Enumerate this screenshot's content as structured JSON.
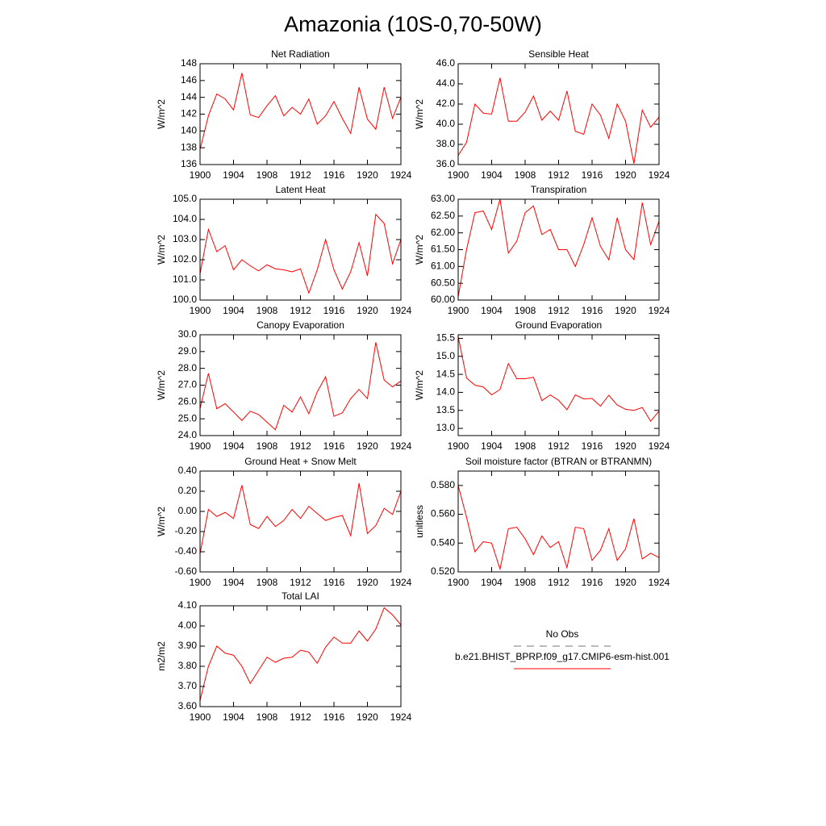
{
  "title": "Amazonia (10S-0,70-50W)",
  "legend": [
    {
      "name": "No Obs",
      "color": "#777777",
      "dash": true
    },
    {
      "name": "b.e21.BHIST_BPRP.f09_g17.CMIP6-esm-hist.001",
      "color": "#ff0000",
      "dash": false
    }
  ],
  "chart_data": [
    {
      "type": "line",
      "title": "Net Radiation",
      "ylabel": "W/m^2",
      "color": "#ff0000",
      "x": [
        1900,
        1901,
        1902,
        1903,
        1904,
        1905,
        1906,
        1907,
        1908,
        1909,
        1910,
        1911,
        1912,
        1913,
        1914,
        1915,
        1916,
        1917,
        1918,
        1919,
        1920,
        1921,
        1922,
        1923,
        1924
      ],
      "values": [
        137.8,
        141.8,
        144.4,
        143.8,
        142.5,
        146.9,
        141.9,
        141.6,
        143.0,
        144.2,
        141.8,
        142.8,
        142.0,
        143.8,
        140.8,
        141.8,
        143.5,
        141.5,
        139.7,
        145.2,
        141.4,
        140.2,
        145.2,
        141.5,
        144.0
      ],
      "xlim": [
        1900,
        1924
      ],
      "xticks": [
        1900,
        1904,
        1908,
        1912,
        1916,
        1920,
        1924
      ],
      "ylim": [
        136,
        148
      ],
      "yticks": [
        136,
        138,
        140,
        142,
        144,
        146,
        148
      ]
    },
    {
      "type": "line",
      "title": "Sensible Heat",
      "ylabel": "W/m^2",
      "color": "#ff0000",
      "x": [
        1900,
        1901,
        1902,
        1903,
        1904,
        1905,
        1906,
        1907,
        1908,
        1909,
        1910,
        1911,
        1912,
        1913,
        1914,
        1915,
        1916,
        1917,
        1918,
        1919,
        1920,
        1921,
        1922,
        1923,
        1924
      ],
      "values": [
        36.9,
        38.2,
        42.0,
        41.1,
        41.0,
        44.6,
        40.3,
        40.3,
        41.2,
        42.8,
        40.4,
        41.3,
        40.4,
        43.3,
        39.3,
        39.0,
        42.0,
        40.9,
        38.6,
        42.0,
        40.3,
        36.1,
        41.4,
        39.7,
        40.7
      ],
      "xlim": [
        1900,
        1924
      ],
      "xticks": [
        1900,
        1904,
        1908,
        1912,
        1916,
        1920,
        1924
      ],
      "ylim": [
        36,
        46
      ],
      "yticks": [
        {
          "value": 36,
          "label": "36.0"
        },
        {
          "value": 38,
          "label": "38.0"
        },
        {
          "value": 40,
          "label": "40.0"
        },
        {
          "value": 42,
          "label": "42.0"
        },
        {
          "value": 44,
          "label": "44.0"
        },
        {
          "value": 46,
          "label": "46.0"
        }
      ]
    },
    {
      "type": "line",
      "title": "Latent Heat",
      "ylabel": "W/m^2",
      "color": "#ff0000",
      "x": [
        1900,
        1901,
        1902,
        1903,
        1904,
        1905,
        1906,
        1907,
        1908,
        1909,
        1910,
        1911,
        1912,
        1913,
        1914,
        1915,
        1916,
        1917,
        1918,
        1919,
        1920,
        1921,
        1922,
        1923,
        1924
      ],
      "values": [
        101.3,
        103.5,
        102.4,
        102.7,
        101.5,
        102.0,
        101.7,
        101.45,
        101.75,
        101.55,
        101.5,
        101.4,
        101.55,
        100.35,
        101.5,
        103.0,
        101.5,
        100.55,
        101.4,
        102.85,
        101.2,
        104.25,
        103.8,
        101.8,
        103.0
      ],
      "xlim": [
        1900,
        1924
      ],
      "xticks": [
        1900,
        1904,
        1908,
        1912,
        1916,
        1920,
        1924
      ],
      "ylim": [
        100,
        105
      ],
      "yticks": [
        {
          "value": 100,
          "label": "100.0"
        },
        {
          "value": 101,
          "label": "101.0"
        },
        {
          "value": 102,
          "label": "102.0"
        },
        {
          "value": 103,
          "label": "103.0"
        },
        {
          "value": 104,
          "label": "104.0"
        },
        {
          "value": 105,
          "label": "105.0"
        }
      ]
    },
    {
      "type": "line",
      "title": "Transpiration",
      "ylabel": "W/m^2",
      "color": "#ff0000",
      "x": [
        1900,
        1901,
        1902,
        1903,
        1904,
        1905,
        1906,
        1907,
        1908,
        1909,
        1910,
        1911,
        1912,
        1913,
        1914,
        1915,
        1916,
        1917,
        1918,
        1919,
        1920,
        1921,
        1922,
        1923,
        1924
      ],
      "values": [
        60.1,
        61.5,
        62.6,
        62.65,
        62.1,
        63.0,
        61.4,
        61.75,
        62.6,
        62.8,
        61.95,
        62.1,
        61.5,
        61.5,
        61.0,
        61.65,
        62.45,
        61.6,
        61.2,
        62.45,
        61.5,
        61.2,
        62.9,
        61.65,
        62.35
      ],
      "xlim": [
        1900,
        1924
      ],
      "xticks": [
        1900,
        1904,
        1908,
        1912,
        1916,
        1920,
        1924
      ],
      "ylim": [
        60,
        63
      ],
      "yticks": [
        {
          "value": 60,
          "label": "60.00"
        },
        {
          "value": 60.5,
          "label": "60.50"
        },
        {
          "value": 61,
          "label": "61.00"
        },
        {
          "value": 61.5,
          "label": "61.50"
        },
        {
          "value": 62,
          "label": "62.00"
        },
        {
          "value": 62.5,
          "label": "62.50"
        },
        {
          "value": 63,
          "label": "63.00"
        }
      ]
    },
    {
      "type": "line",
      "title": "Canopy Evaporation",
      "ylabel": "W/m^2",
      "color": "#ff0000",
      "x": [
        1900,
        1901,
        1902,
        1903,
        1904,
        1905,
        1906,
        1907,
        1908,
        1909,
        1910,
        1911,
        1912,
        1913,
        1914,
        1915,
        1916,
        1917,
        1918,
        1919,
        1920,
        1921,
        1922,
        1923,
        1924
      ],
      "values": [
        25.6,
        27.7,
        25.6,
        25.9,
        25.4,
        24.9,
        25.45,
        25.25,
        24.8,
        24.35,
        25.8,
        25.4,
        26.3,
        25.3,
        26.6,
        27.5,
        25.15,
        25.35,
        26.2,
        26.75,
        26.2,
        29.55,
        27.3,
        26.9,
        27.25
      ],
      "xlim": [
        1900,
        1924
      ],
      "xticks": [
        1900,
        1904,
        1908,
        1912,
        1916,
        1920,
        1924
      ],
      "ylim": [
        24,
        30
      ],
      "yticks": [
        {
          "value": 24,
          "label": "24.0"
        },
        {
          "value": 25,
          "label": "25.0"
        },
        {
          "value": 26,
          "label": "26.0"
        },
        {
          "value": 27,
          "label": "27.0"
        },
        {
          "value": 28,
          "label": "28.0"
        },
        {
          "value": 29,
          "label": "29.0"
        },
        {
          "value": 30,
          "label": "30.0"
        }
      ]
    },
    {
      "type": "line",
      "title": "Ground Evaporation",
      "ylabel": "W/m^2",
      "color": "#ff0000",
      "x": [
        1900,
        1901,
        1902,
        1903,
        1904,
        1905,
        1906,
        1907,
        1908,
        1909,
        1910,
        1911,
        1912,
        1913,
        1914,
        1915,
        1916,
        1917,
        1918,
        1919,
        1920,
        1921,
        1922,
        1923,
        1924
      ],
      "values": [
        15.55,
        14.4,
        14.2,
        14.15,
        13.93,
        14.08,
        14.8,
        14.38,
        14.38,
        14.42,
        13.77,
        13.93,
        13.78,
        13.52,
        13.93,
        13.82,
        13.83,
        13.62,
        13.92,
        13.65,
        13.53,
        13.5,
        13.58,
        13.2,
        13.48
      ],
      "xlim": [
        1900,
        1924
      ],
      "xticks": [
        1900,
        1904,
        1908,
        1912,
        1916,
        1920,
        1924
      ],
      "ylim": [
        12.8,
        15.6
      ],
      "yticks": [
        {
          "value": 13,
          "label": "13.0"
        },
        13.5,
        {
          "value": 14,
          "label": "14.0"
        },
        14.5,
        {
          "value": 15,
          "label": "15.0"
        },
        15.5
      ]
    },
    {
      "type": "line",
      "title": "Ground Heat + Snow Melt",
      "ylabel": "W/m^2",
      "color": "#ff0000",
      "x": [
        1900,
        1901,
        1902,
        1903,
        1904,
        1905,
        1906,
        1907,
        1908,
        1909,
        1910,
        1911,
        1912,
        1913,
        1914,
        1915,
        1916,
        1917,
        1918,
        1919,
        1920,
        1921,
        1922,
        1923,
        1924
      ],
      "values": [
        -0.42,
        0.02,
        -0.05,
        -0.01,
        -0.07,
        0.26,
        -0.13,
        -0.17,
        -0.05,
        -0.15,
        -0.09,
        0.02,
        -0.07,
        0.05,
        -0.02,
        -0.09,
        -0.06,
        -0.04,
        -0.24,
        0.28,
        -0.22,
        -0.14,
        0.03,
        -0.03,
        0.2
      ],
      "xlim": [
        1900,
        1924
      ],
      "xticks": [
        1900,
        1904,
        1908,
        1912,
        1916,
        1920,
        1924
      ],
      "ylim": [
        -0.6,
        0.4
      ],
      "yticks": [
        {
          "value": -0.6,
          "label": "-0.60"
        },
        {
          "value": -0.4,
          "label": "-0.40"
        },
        {
          "value": -0.2,
          "label": "-0.20"
        },
        {
          "value": 0,
          "label": "0.00"
        },
        {
          "value": 0.2,
          "label": "0.20"
        },
        {
          "value": 0.4,
          "label": "0.40"
        }
      ]
    },
    {
      "type": "line",
      "title": "Soil moisture factor (BTRAN or BTRANMN)",
      "ylabel": "unitless",
      "color": "#ff0000",
      "x": [
        1900,
        1901,
        1902,
        1903,
        1904,
        1905,
        1906,
        1907,
        1908,
        1909,
        1910,
        1911,
        1912,
        1913,
        1914,
        1915,
        1916,
        1917,
        1918,
        1919,
        1920,
        1921,
        1922,
        1923,
        1924
      ],
      "values": [
        0.58,
        0.558,
        0.534,
        0.541,
        0.54,
        0.522,
        0.55,
        0.551,
        0.543,
        0.532,
        0.545,
        0.537,
        0.541,
        0.523,
        0.551,
        0.55,
        0.528,
        0.535,
        0.55,
        0.528,
        0.536,
        0.557,
        0.529,
        0.533,
        0.53
      ],
      "xlim": [
        1900,
        1924
      ],
      "xticks": [
        1900,
        1904,
        1908,
        1912,
        1916,
        1920,
        1924
      ],
      "ylim": [
        0.52,
        0.59
      ],
      "yticks": [
        {
          "value": 0.52,
          "label": "0.520"
        },
        {
          "value": 0.54,
          "label": "0.540"
        },
        {
          "value": 0.56,
          "label": "0.560"
        },
        {
          "value": 0.58,
          "label": "0.580"
        }
      ]
    },
    {
      "type": "line",
      "title": "Total LAI",
      "ylabel": "m2/m2",
      "color": "#ff0000",
      "x": [
        1900,
        1901,
        1902,
        1903,
        1904,
        1905,
        1906,
        1907,
        1908,
        1909,
        1910,
        1911,
        1912,
        1913,
        1914,
        1915,
        1916,
        1917,
        1918,
        1919,
        1920,
        1921,
        1922,
        1923,
        1924
      ],
      "values": [
        3.63,
        3.8,
        3.9,
        3.865,
        3.855,
        3.8,
        3.715,
        3.78,
        3.845,
        3.82,
        3.84,
        3.845,
        3.88,
        3.87,
        3.815,
        3.895,
        3.945,
        3.915,
        3.915,
        3.975,
        3.925,
        3.985,
        4.09,
        4.055,
        4.005
      ],
      "xlim": [
        1900,
        1924
      ],
      "xticks": [
        1900,
        1904,
        1908,
        1912,
        1916,
        1920,
        1924
      ],
      "ylim": [
        3.6,
        4.1
      ],
      "yticks": [
        {
          "value": 3.6,
          "label": "3.60"
        },
        {
          "value": 3.7,
          "label": "3.70"
        },
        {
          "value": 3.8,
          "label": "3.80"
        },
        {
          "value": 3.9,
          "label": "3.90"
        },
        {
          "value": 4,
          "label": "4.00"
        },
        {
          "value": 4.1,
          "label": "4.10"
        }
      ]
    }
  ]
}
